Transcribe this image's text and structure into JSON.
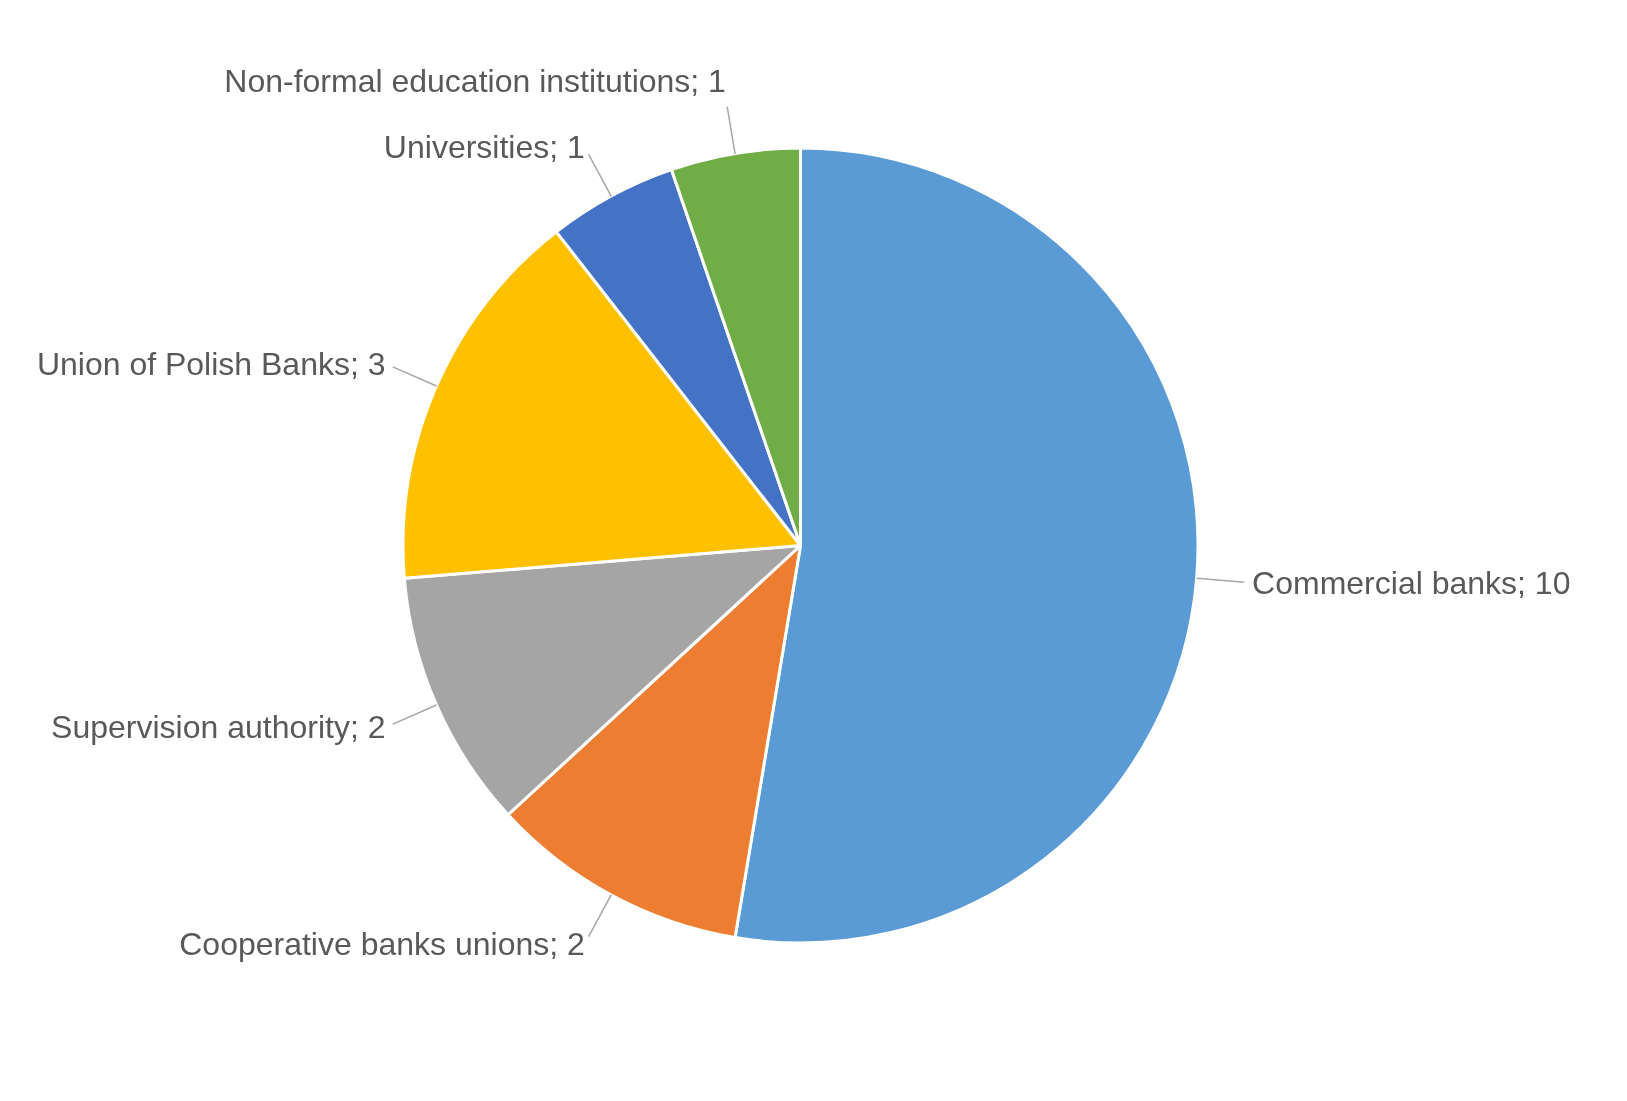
{
  "chart_data": {
    "type": "pie",
    "categories": [
      "Commercial banks; 10",
      "Cooperative banks unions; 2",
      "Supervision authority; 2",
      "Union of Polish Banks; 3",
      "Universities; 1",
      "Non-formal education institutions; 1"
    ],
    "values": [
      10,
      2,
      2,
      3,
      1,
      1
    ],
    "colors": [
      "#5b9bd5",
      "#ed7d31",
      "#a5a5a5",
      "#ffc000",
      "#4472c4",
      "#70ad47"
    ],
    "legend": false
  }
}
